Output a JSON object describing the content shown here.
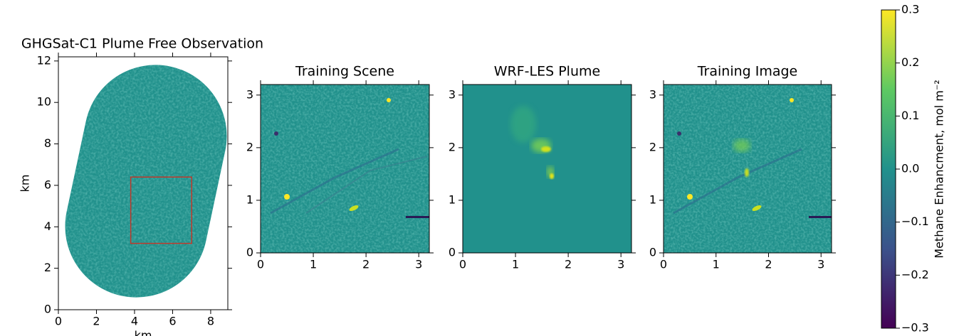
{
  "chart_data": [
    {
      "type": "image",
      "title": "GHGSat-C1 Plume Free Observation",
      "xlabel": "km",
      "ylabel": "km",
      "xlim": [
        0,
        8.9
      ],
      "ylim": [
        0,
        12.2
      ],
      "xticks": [
        0,
        2,
        4,
        6,
        8
      ],
      "yticks": [
        0,
        2,
        4,
        6,
        8,
        10,
        12
      ],
      "box": {
        "x": [
          3.8,
          7
        ],
        "y": [
          3.2,
          6.4
        ],
        "color": "#c0392b"
      }
    },
    {
      "type": "image",
      "title": "Training Scene",
      "xlim": [
        0,
        3.2
      ],
      "ylim": [
        0,
        3.2
      ],
      "xticks": [
        0,
        1,
        2,
        3
      ],
      "yticks": [
        0,
        1,
        2,
        3
      ]
    },
    {
      "type": "image",
      "title": "WRF-LES Plume",
      "xlim": [
        0,
        3.2
      ],
      "ylim": [
        0,
        3.2
      ],
      "xticks": [
        0,
        1,
        2,
        3
      ],
      "yticks": [
        0,
        1,
        2,
        3
      ]
    },
    {
      "type": "image",
      "title": "Training Image",
      "xlim": [
        0,
        3.2
      ],
      "ylim": [
        0,
        3.2
      ],
      "xticks": [
        0,
        1,
        2,
        3
      ],
      "yticks": [
        0,
        1,
        2,
        3
      ]
    },
    {
      "type": "colorbar",
      "label": "Methane Enhancment,  mol m⁻²",
      "ylim": [
        -0.3,
        0.3
      ],
      "yticks": [
        {
          "value": -0.3,
          "label": "−0.3"
        },
        {
          "value": -0.2,
          "label": "−0.2"
        },
        {
          "value": -0.1,
          "label": "−0.1"
        },
        {
          "value": 0,
          "label": "0.0"
        },
        0.1,
        0.2,
        0.3
      ],
      "colors": [
        "#440154",
        "#3b528b",
        "#21918c",
        "#5ec962",
        "#fde725"
      ]
    }
  ]
}
